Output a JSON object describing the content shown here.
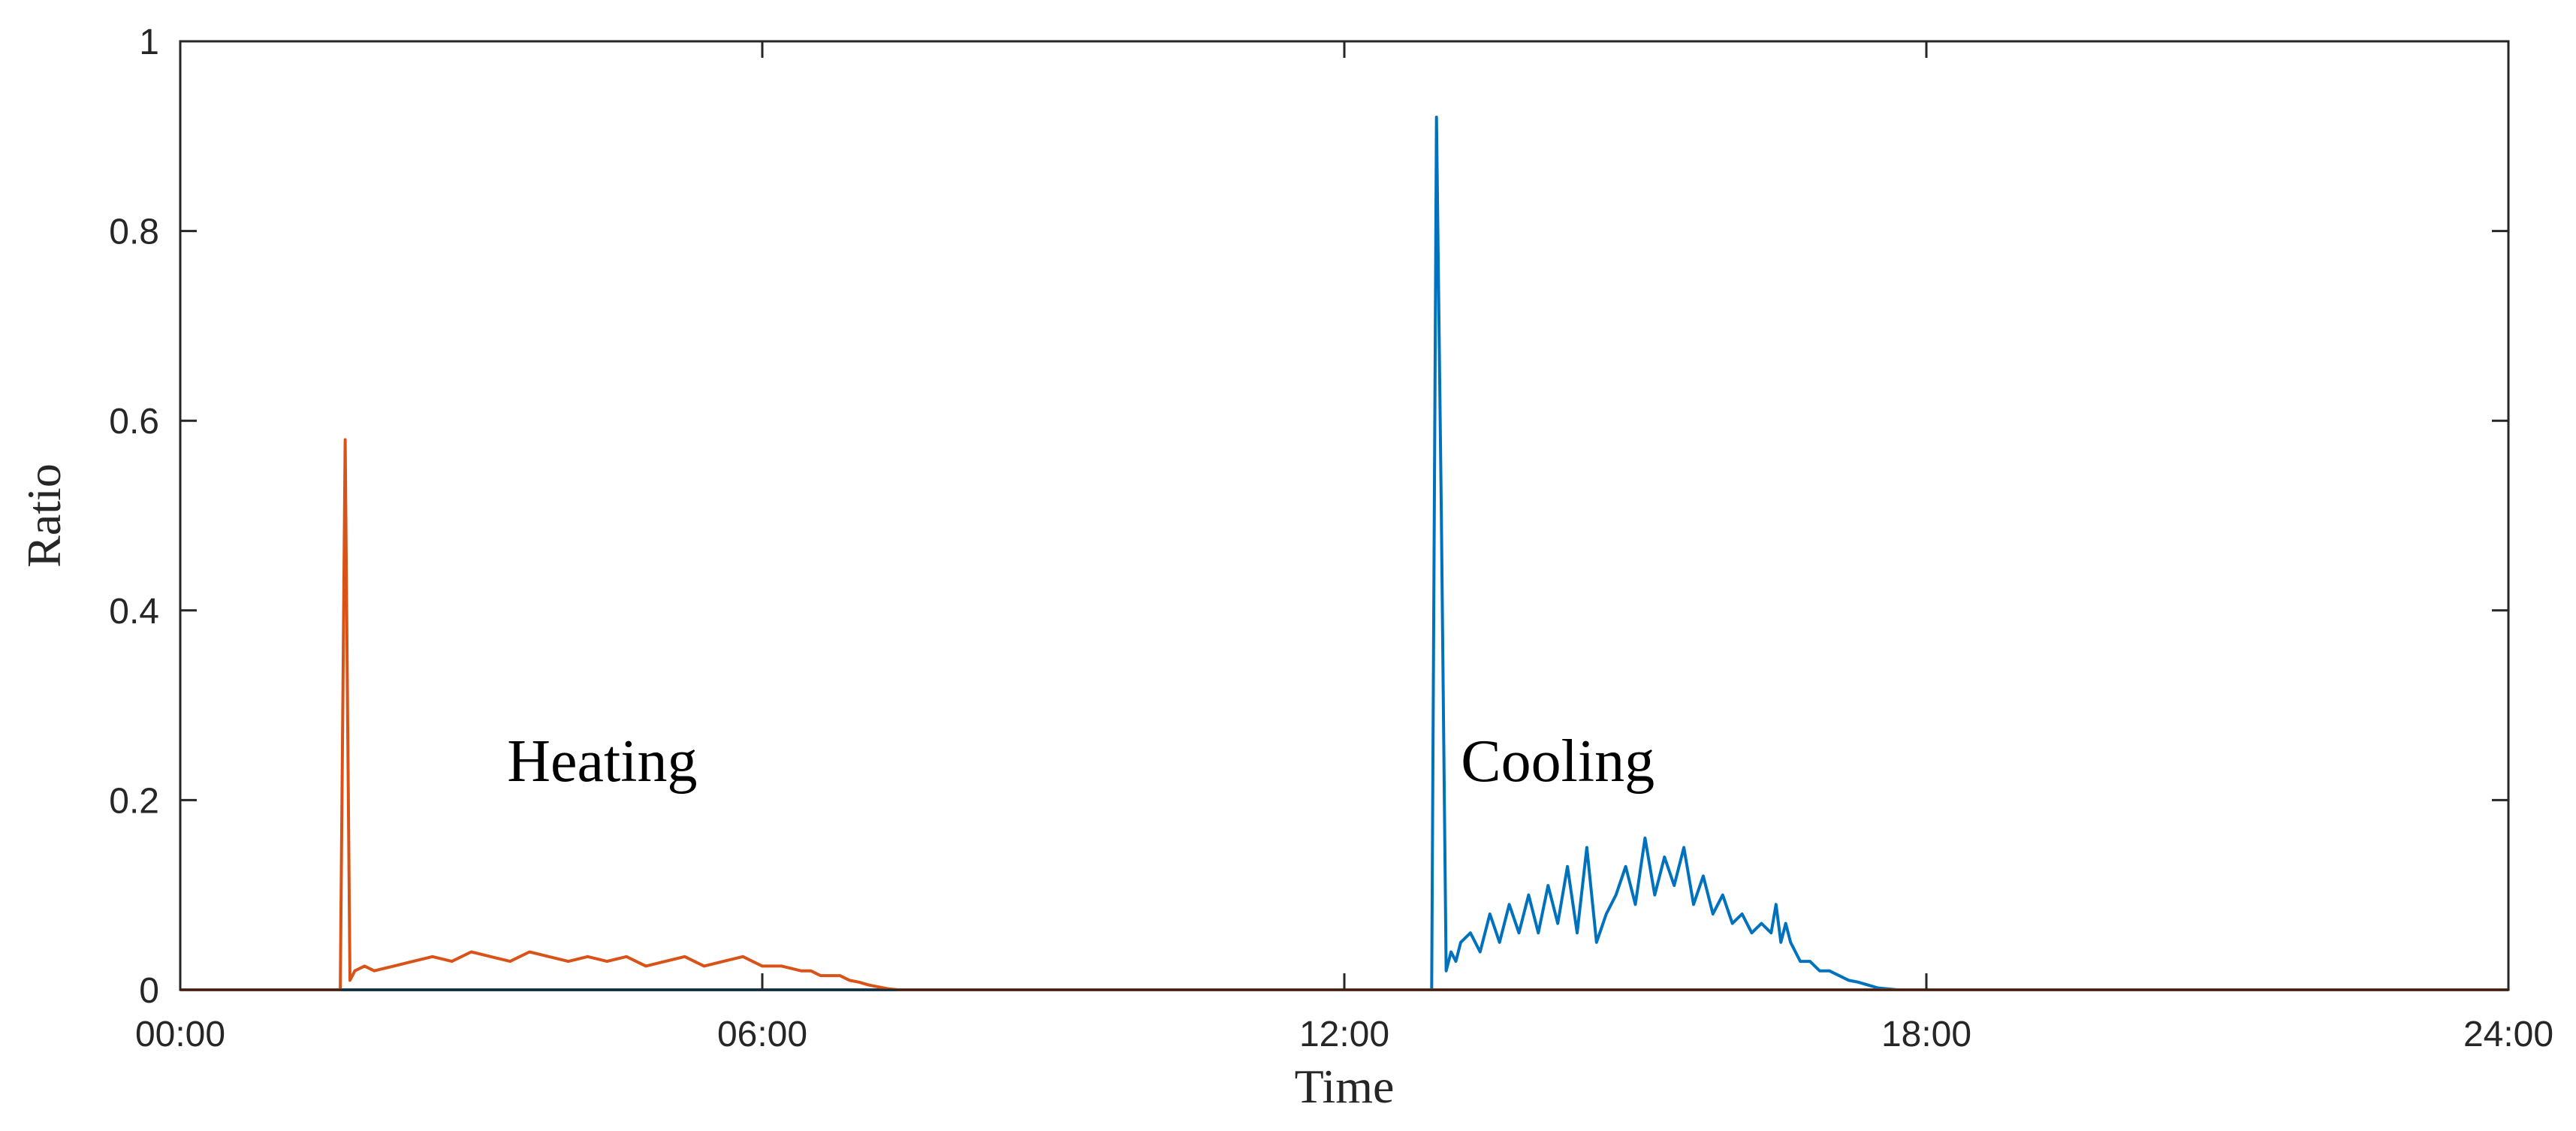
{
  "chart_data": {
    "type": "line",
    "title": "",
    "xlabel": "Time",
    "ylabel": "Ratio",
    "xlim": [
      0,
      24
    ],
    "ylim": [
      0,
      1
    ],
    "x_ticks": [
      {
        "value": 0,
        "label": "00:00"
      },
      {
        "value": 6,
        "label": "06:00"
      },
      {
        "value": 12,
        "label": "12:00"
      },
      {
        "value": 18,
        "label": "18:00"
      },
      {
        "value": 24,
        "label": "24:00"
      }
    ],
    "y_ticks": [
      {
        "value": 0,
        "label": "0"
      },
      {
        "value": 0.2,
        "label": "0.2"
      },
      {
        "value": 0.4,
        "label": "0.4"
      },
      {
        "value": 0.6,
        "label": "0.6"
      },
      {
        "value": 0.8,
        "label": "0.8"
      },
      {
        "value": 1,
        "label": "1"
      }
    ],
    "grid": false,
    "annotations": [
      {
        "text": "Heating",
        "x": 4.35,
        "y": 0.22
      },
      {
        "text": "Cooling",
        "x": 14.2,
        "y": 0.22
      }
    ],
    "series": [
      {
        "color": "#0072BD",
        "x": [
          0,
          12.9,
          12.95,
          13.0,
          13.05,
          13.1,
          13.15,
          13.2,
          13.3,
          13.4,
          13.5,
          13.6,
          13.7,
          13.8,
          13.9,
          14.0,
          14.1,
          14.2,
          14.3,
          14.4,
          14.5,
          14.6,
          14.7,
          14.8,
          14.9,
          15.0,
          15.1,
          15.2,
          15.3,
          15.4,
          15.5,
          15.6,
          15.7,
          15.8,
          15.9,
          16.0,
          16.1,
          16.2,
          16.3,
          16.4,
          16.45,
          16.5,
          16.55,
          16.6,
          16.7,
          16.8,
          16.9,
          17.0,
          17.1,
          17.2,
          17.3,
          17.4,
          17.5,
          17.6,
          17.7,
          18,
          24
        ],
        "y": [
          0,
          0,
          0.92,
          0.5,
          0.02,
          0.04,
          0.03,
          0.05,
          0.06,
          0.04,
          0.08,
          0.05,
          0.09,
          0.06,
          0.1,
          0.06,
          0.11,
          0.07,
          0.13,
          0.06,
          0.15,
          0.05,
          0.08,
          0.1,
          0.13,
          0.09,
          0.16,
          0.1,
          0.14,
          0.11,
          0.15,
          0.09,
          0.12,
          0.08,
          0.1,
          0.07,
          0.08,
          0.06,
          0.07,
          0.06,
          0.09,
          0.05,
          0.07,
          0.05,
          0.03,
          0.03,
          0.02,
          0.02,
          0.015,
          0.01,
          0.008,
          0.005,
          0.002,
          0.001,
          0,
          0,
          0
        ]
      },
      {
        "color": "#D95319",
        "x": [
          0,
          1.65,
          1.7,
          1.75,
          1.8,
          1.9,
          2.0,
          2.2,
          2.4,
          2.6,
          2.8,
          3.0,
          3.2,
          3.4,
          3.6,
          3.8,
          4.0,
          4.2,
          4.4,
          4.6,
          4.8,
          5.0,
          5.2,
          5.4,
          5.6,
          5.8,
          6.0,
          6.2,
          6.4,
          6.5,
          6.6,
          6.7,
          6.8,
          6.9,
          7.0,
          7.1,
          7.2,
          7.3,
          7.4,
          24
        ],
        "y": [
          0,
          0,
          0.58,
          0.01,
          0.02,
          0.025,
          0.02,
          0.025,
          0.03,
          0.035,
          0.03,
          0.04,
          0.035,
          0.03,
          0.04,
          0.035,
          0.03,
          0.035,
          0.03,
          0.035,
          0.025,
          0.03,
          0.035,
          0.025,
          0.03,
          0.035,
          0.025,
          0.025,
          0.02,
          0.02,
          0.015,
          0.015,
          0.015,
          0.01,
          0.008,
          0.005,
          0.003,
          0.001,
          0,
          0
        ]
      }
    ]
  }
}
